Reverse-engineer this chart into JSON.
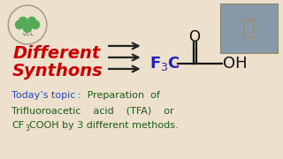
{
  "background_color": "#ede0cc",
  "title_line1": "Different",
  "title_line2": "Synthons",
  "title_color": "#cc0000",
  "arrow_color": "#222222",
  "bottom_line1_blue": "Today’s topic",
  "bottom_line1_green": "  :  Preparation  of",
  "bottom_line2": "Trifluoroacetic    acid    (TFA)    or",
  "bottom_line3_cf": "CF",
  "bottom_line3_rest": "COOH by 3 different methods.",
  "bottom_text_color": "#1a5c1a",
  "bottom_highlight_color": "#1a4acc",
  "molecule_color": "#111111",
  "f3c_color": "#2222bb",
  "oh_color": "#111111",
  "figw": 3.2,
  "figh": 1.8,
  "dpi": 100
}
